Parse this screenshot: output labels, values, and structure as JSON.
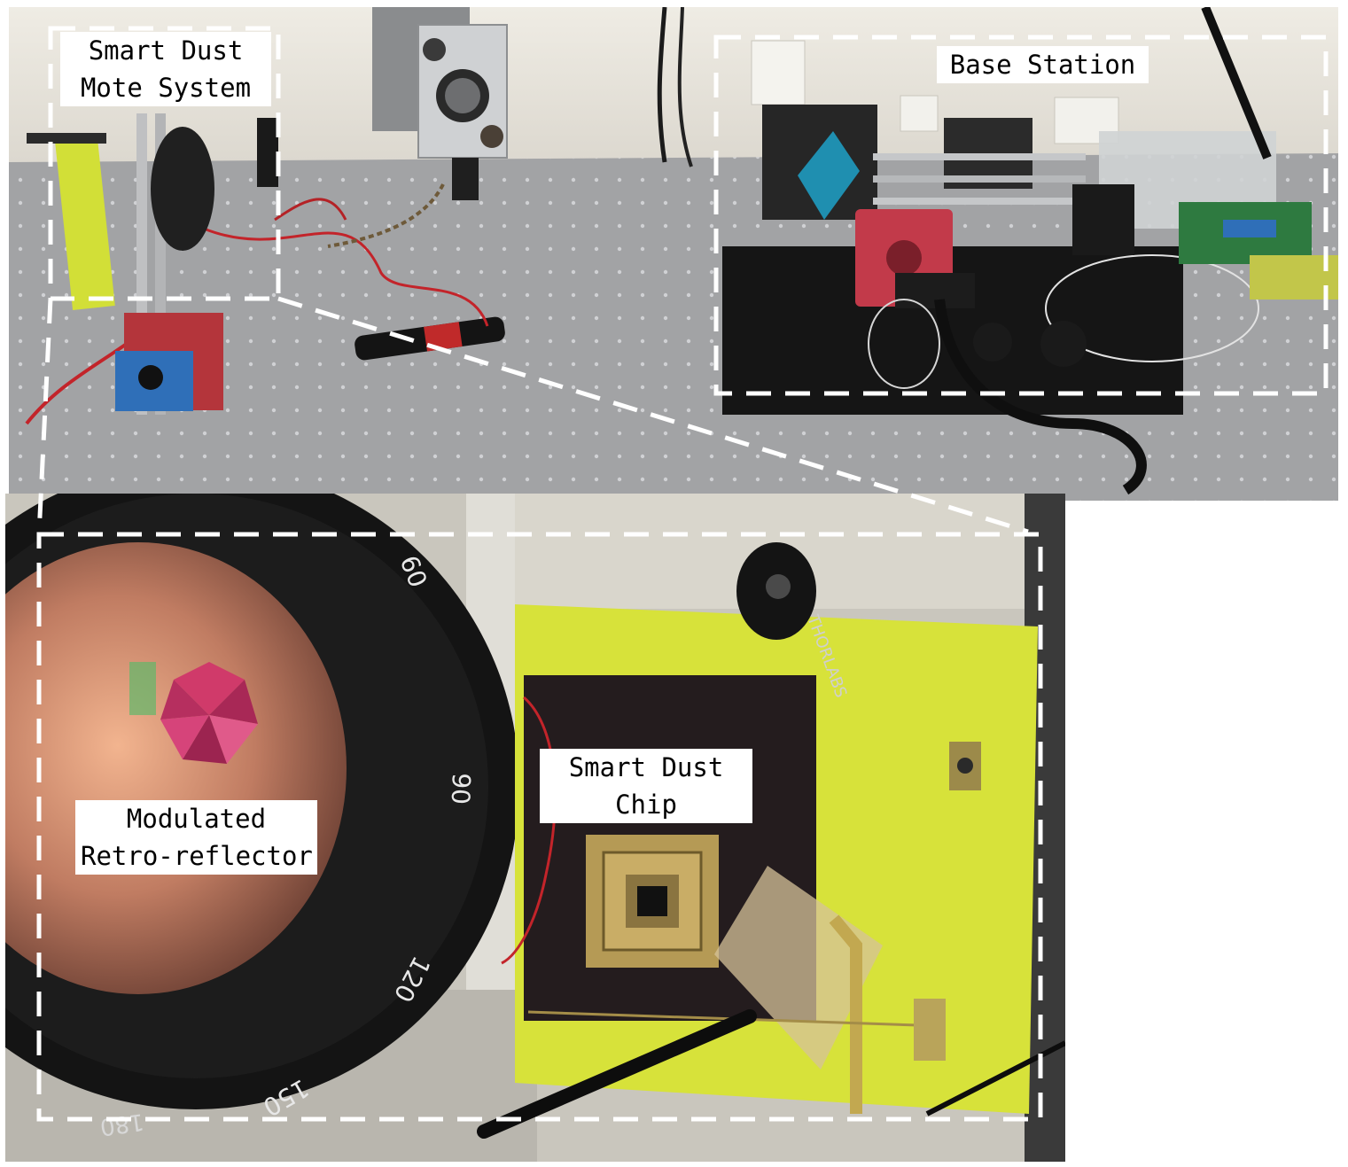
{
  "labels": {
    "mote_system": "Smart Dust\nMote System",
    "base_station": "Base Station",
    "retro_reflector": "Modulated\nRetro-reflector",
    "chip": "Smart Dust\nChip"
  },
  "scale_marks": {
    "m60": "60",
    "m90": "90",
    "m120": "120",
    "m150": "150",
    "m180": "180"
  },
  "brand_text": "THORLABS",
  "colors": {
    "dash_box": "#ffffff",
    "label_bg": "#ffffff",
    "label_text": "#000000",
    "pcb_yellow": "#d7e23a",
    "camera_red": "#c23a4a",
    "optical_table": "#a3a4a6"
  }
}
